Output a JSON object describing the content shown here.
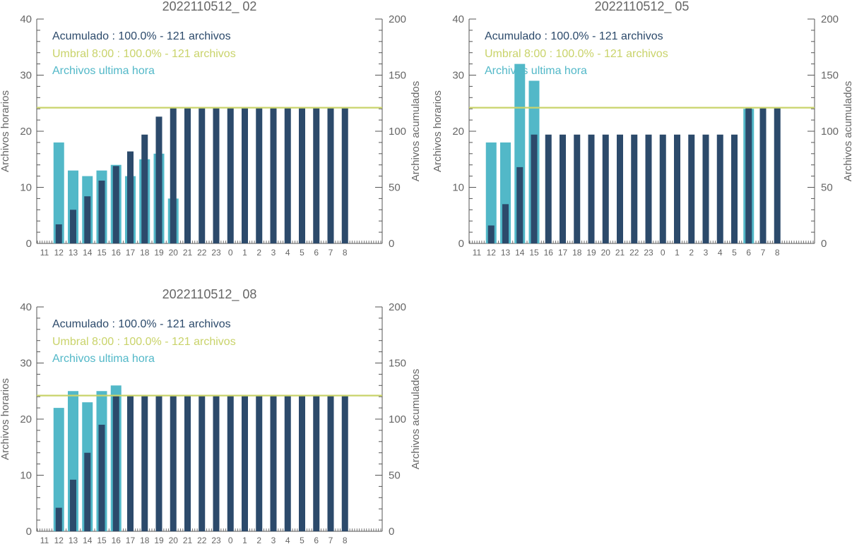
{
  "colors": {
    "axis": "#555555",
    "hourly": "#52b8c8",
    "cumulative": "#2c4a6b",
    "threshold": "#c9d36a",
    "title": "#666666"
  },
  "chart_data": [
    {
      "type": "bar",
      "title": "2022110512_ 02",
      "ylabel": "Archivos horarios",
      "y2label": "Archivos acumulados",
      "ylim": [
        0,
        40
      ],
      "y2lim": [
        0,
        200
      ],
      "yticks": [
        "0",
        "10",
        "20",
        "30",
        "40"
      ],
      "y2ticks": [
        "0",
        "50",
        "100",
        "150",
        "200"
      ],
      "categories": [
        "11",
        "12",
        "13",
        "14",
        "15",
        "16",
        "17",
        "18",
        "19",
        "20",
        "21",
        "22",
        "23",
        "0",
        "1",
        "2",
        "3",
        "4",
        "5",
        "6",
        "7",
        "8"
      ],
      "legend": {
        "acumulado": "Acumulado : 100.0% - 121 archivos",
        "umbral": "Umbral 8:00 : 100.0% - 121 archivos",
        "hora": "Archivos ultima hora"
      },
      "threshold": 121,
      "series": [
        {
          "name": "Archivos ultima hora",
          "values": [
            0,
            18,
            13,
            12,
            13,
            14,
            12,
            15,
            16,
            8,
            0,
            0,
            0,
            0,
            0,
            0,
            0,
            0,
            0,
            0,
            0,
            0
          ]
        },
        {
          "name": "Acumulado",
          "values": [
            0,
            17,
            30,
            42,
            56,
            69,
            82,
            97,
            113,
            121,
            121,
            121,
            121,
            121,
            121,
            121,
            121,
            121,
            121,
            121,
            121,
            121
          ]
        }
      ]
    },
    {
      "type": "bar",
      "title": "2022110512_ 05",
      "ylabel": "Archivos horarios",
      "y2label": "Archivos acumulados",
      "ylim": [
        0,
        40
      ],
      "y2lim": [
        0,
        200
      ],
      "yticks": [
        "0",
        "10",
        "20",
        "30",
        "40"
      ],
      "y2ticks": [
        "0",
        "50",
        "100",
        "150",
        "200"
      ],
      "categories": [
        "11",
        "12",
        "13",
        "14",
        "15",
        "16",
        "17",
        "18",
        "19",
        "20",
        "21",
        "22",
        "23",
        "0",
        "1",
        "2",
        "3",
        "4",
        "5",
        "6",
        "7",
        "8"
      ],
      "legend": {
        "acumulado": "Acumulado : 100.0% - 121 archivos",
        "umbral": "Umbral 8:00 : 100.0% - 121 archivos",
        "hora": "Archivos ultima hora"
      },
      "threshold": 121,
      "series": [
        {
          "name": "Archivos ultima hora",
          "values": [
            0,
            18,
            18,
            32,
            29,
            0,
            0,
            0,
            0,
            0,
            0,
            0,
            0,
            0,
            0,
            0,
            0,
            0,
            0,
            24,
            0,
            0
          ]
        },
        {
          "name": "Acumulado",
          "values": [
            0,
            16,
            35,
            68,
            97,
            97,
            97,
            97,
            97,
            97,
            97,
            97,
            97,
            97,
            97,
            97,
            97,
            97,
            97,
            121,
            121,
            121
          ]
        }
      ]
    },
    {
      "type": "bar",
      "title": "2022110512_ 08",
      "ylabel": "Archivos horarios",
      "y2label": "Archivos acumulados",
      "ylim": [
        0,
        40
      ],
      "y2lim": [
        0,
        200
      ],
      "yticks": [
        "0",
        "10",
        "20",
        "30",
        "40"
      ],
      "y2ticks": [
        "0",
        "50",
        "100",
        "150",
        "200"
      ],
      "categories": [
        "11",
        "12",
        "13",
        "14",
        "15",
        "16",
        "17",
        "18",
        "19",
        "20",
        "21",
        "22",
        "23",
        "0",
        "1",
        "2",
        "3",
        "4",
        "5",
        "6",
        "7",
        "8"
      ],
      "legend": {
        "acumulado": "Acumulado : 100.0% - 121 archivos",
        "umbral": "Umbral 8:00 : 100.0% - 121 archivos",
        "hora": "Archivos ultima hora"
      },
      "threshold": 121,
      "series": [
        {
          "name": "Archivos ultima hora",
          "values": [
            0,
            22,
            25,
            23,
            25,
            26,
            0,
            0,
            0,
            0,
            0,
            0,
            0,
            0,
            0,
            0,
            0,
            0,
            0,
            0,
            0,
            0
          ]
        },
        {
          "name": "Acumulado",
          "values": [
            0,
            21,
            46,
            70,
            95,
            121,
            121,
            121,
            121,
            121,
            121,
            121,
            121,
            121,
            121,
            121,
            121,
            121,
            121,
            121,
            121,
            121
          ]
        }
      ]
    }
  ]
}
